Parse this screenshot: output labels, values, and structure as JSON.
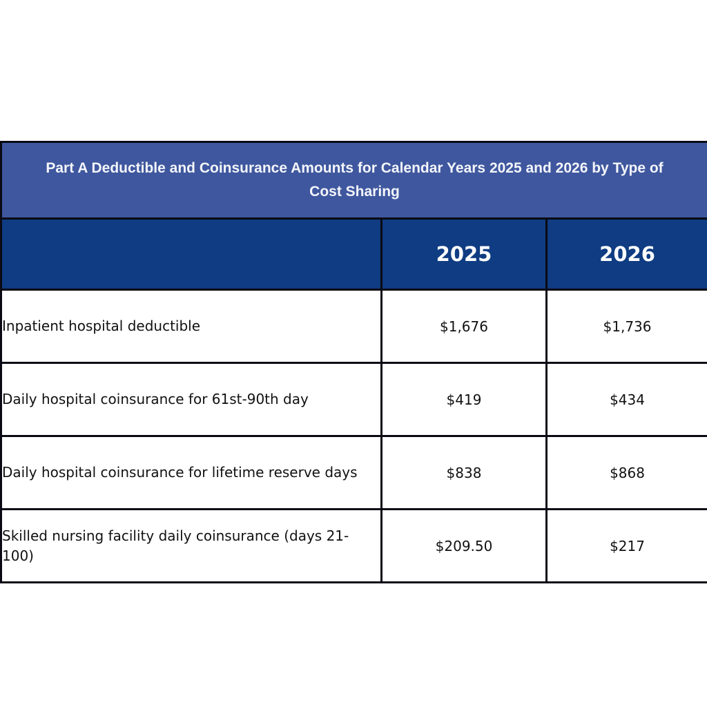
{
  "title": "Part A Deductible and Coinsurance Amounts for Calendar Years 2025 and 2026 by Type of Cost Sharing",
  "columns": [
    "",
    "2025",
    "2026"
  ],
  "rows": [
    {
      "label": "Inpatient hospital deductible",
      "y2025": "$1,676",
      "y2026": "$1,736"
    },
    {
      "label": "Daily hospital coinsurance for 61st-90th day",
      "y2025": "$419",
      "y2026": "$434"
    },
    {
      "label": "Daily hospital coinsurance for lifetime reserve days",
      "y2025": "$838",
      "y2026": "$868"
    },
    {
      "label": "Skilled nursing facility daily coinsurance (days 21-100)",
      "y2025": "$209.50",
      "y2026": "$217"
    }
  ],
  "colors": {
    "title_bg": "#3f579e",
    "header_bg": "#0f3c82"
  }
}
